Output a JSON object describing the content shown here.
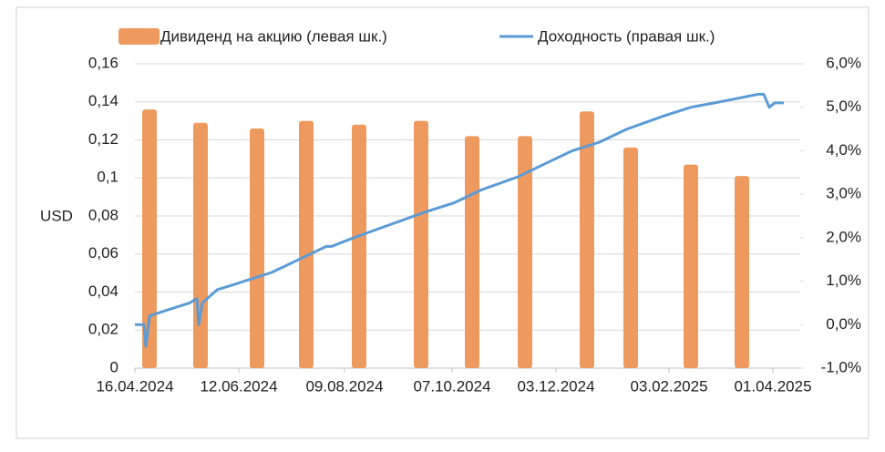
{
  "chart_data": {
    "type": "bar",
    "ylabel": "USD",
    "xlim": [
      "16.04.2024",
      "16.04.2025"
    ],
    "xticks": [
      "16.04.2024",
      "12.06.2024",
      "09.08.2024",
      "07.10.2024",
      "03.12.2024",
      "03.02.2025",
      "01.04.2025"
    ],
    "ylim": [
      0,
      0.16
    ],
    "yticks": [
      0,
      {
        "value": 0.02,
        "label": "0,02"
      },
      {
        "value": 0.04,
        "label": "0,04"
      },
      {
        "value": 0.06,
        "label": "0,06"
      },
      {
        "value": 0.08,
        "label": "0,08"
      },
      {
        "value": 0.1,
        "label": "0,1"
      },
      {
        "value": 0.12,
        "label": "0,12"
      },
      {
        "value": 0.14,
        "label": "0,14"
      },
      {
        "value": 0.16,
        "label": "0,16"
      }
    ],
    "y2lim": [
      -1,
      6
    ],
    "y2ticks": [
      {
        "value": -1,
        "label": "-1,0%"
      },
      {
        "value": 0,
        "label": "0,0%"
      },
      {
        "value": 1,
        "label": "1,0%"
      },
      {
        "value": 2,
        "label": "2,0%"
      },
      {
        "value": 3,
        "label": "3,0%"
      },
      {
        "value": 4,
        "label": "4,0%"
      },
      {
        "value": 5,
        "label": "5,0%"
      },
      {
        "value": 6,
        "label": "6,0%"
      }
    ],
    "grid": true,
    "legend": "top",
    "series": [
      {
        "name": "Дивиденд на акцию (левая шк.)",
        "color": "#ee9a5e",
        "type": "bar",
        "x": [
          "24.04.2024",
          "22.05.2024",
          "22.06.2024",
          "19.07.2024",
          "17.08.2024",
          "20.09.2024",
          "18.10.2024",
          "16.11.2024",
          "20.12.2024",
          "13.01.2025",
          "15.02.2025",
          "15.03.2025"
        ],
        "values": [
          0.136,
          0.129,
          0.126,
          0.13,
          0.128,
          0.13,
          0.122,
          0.122,
          0.135,
          0.116,
          0.107,
          0.101
        ]
      },
      {
        "name": "Доходность (правая шк.)",
        "color": "#5b9bd5",
        "type": "line",
        "axis": "y2",
        "x": [
          "16.04.2024",
          "21.04.2024",
          "22.04.2024",
          "24.04.2024",
          "01.05.2024",
          "16.05.2024",
          "20.05.2024",
          "21.05.2024",
          "23.05.2024",
          "31.05.2024",
          "15.06.2024",
          "30.06.2024",
          "15.07.2024",
          "30.07.2024",
          "02.08.2024",
          "14.08.2024",
          "03.09.2024",
          "23.09.2024",
          "08.10.2024",
          "23.10.2024",
          "12.11.2024",
          "27.11.2024",
          "12.12.2024",
          "27.12.2024",
          "11.01.2025",
          "31.01.2025",
          "15.02.2025",
          "28.02.2025",
          "12.03.2025",
          "24.03.2025",
          "27.03.2025",
          "30.03.2025",
          "02.04.2025",
          "07.04.2025"
        ],
        "values": [
          0.0,
          0.0,
          -0.5,
          0.2,
          0.3,
          0.5,
          0.6,
          0.0,
          0.5,
          0.8,
          1.0,
          1.2,
          1.5,
          1.8,
          1.8,
          2.0,
          2.3,
          2.6,
          2.8,
          3.1,
          3.4,
          3.7,
          4.0,
          4.2,
          4.5,
          4.8,
          5.0,
          5.1,
          5.2,
          5.3,
          5.3,
          5.0,
          5.1,
          5.1
        ]
      }
    ]
  }
}
